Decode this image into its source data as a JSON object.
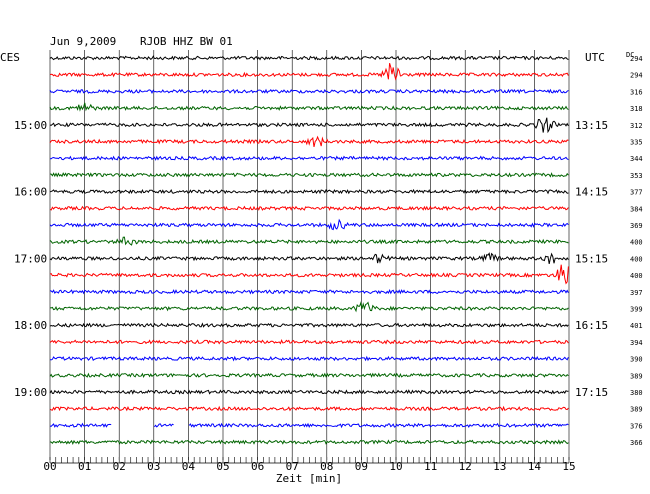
{
  "header": {
    "date": "Jun 9,2009",
    "station": "RJOB HHZ BW 01",
    "left_zone": "CES",
    "right_zone": "UTC",
    "dc_label": "DC"
  },
  "colors": {
    "trace_cycle": [
      "#000000",
      "#ff0000",
      "#0000ff",
      "#006400"
    ],
    "grid": "#000000",
    "background": "#ffffff"
  },
  "chart_data": {
    "type": "line",
    "title": "",
    "xlabel": "Zeit [min]",
    "ylabel": "",
    "xlim": [
      0,
      15
    ],
    "x_ticks": [
      "00",
      "01",
      "02",
      "03",
      "04",
      "05",
      "06",
      "07",
      "08",
      "09",
      "10",
      "11",
      "12",
      "13",
      "14",
      "15"
    ],
    "grid": true,
    "traces": 24,
    "left_time_labels": [
      {
        "row": 4,
        "label": "15:00"
      },
      {
        "row": 8,
        "label": "16:00"
      },
      {
        "row": 12,
        "label": "17:00"
      },
      {
        "row": 16,
        "label": "18:00"
      },
      {
        "row": 20,
        "label": "19:00"
      }
    ],
    "right_time_labels": [
      {
        "row": 4,
        "label": "13:15"
      },
      {
        "row": 8,
        "label": "14:15"
      },
      {
        "row": 12,
        "label": "15:15"
      },
      {
        "row": 16,
        "label": "16:15"
      },
      {
        "row": 20,
        "label": "17:15"
      }
    ],
    "dc_values": [
      "294",
      "294",
      "316",
      "318",
      "312",
      "335",
      "344",
      "353",
      "377",
      "384",
      "369",
      "400",
      "400",
      "400",
      "397",
      "399",
      "401",
      "394",
      "390",
      "389",
      "380",
      "389",
      "376",
      "366"
    ],
    "events": [
      {
        "row": 1,
        "minute": 9.9,
        "amplitude": 14
      },
      {
        "row": 3,
        "minute": 1.0,
        "amplitude": 5
      },
      {
        "row": 4,
        "minute": 14.3,
        "amplitude": 8
      },
      {
        "row": 5,
        "minute": 7.7,
        "amplitude": 5
      },
      {
        "row": 10,
        "minute": 8.3,
        "amplitude": 5
      },
      {
        "row": 11,
        "minute": 2.2,
        "amplitude": 4
      },
      {
        "row": 12,
        "minute": 9.5,
        "amplitude": 4
      },
      {
        "row": 12,
        "minute": 12.7,
        "amplitude": 4
      },
      {
        "row": 12,
        "minute": 14.5,
        "amplitude": 5
      },
      {
        "row": 13,
        "minute": 14.9,
        "amplitude": 14
      },
      {
        "row": 15,
        "minute": 9.1,
        "amplitude": 7
      }
    ],
    "gaps": [
      {
        "row": 22,
        "from": 1.8,
        "to": 3.0
      },
      {
        "row": 22,
        "from": 3.6,
        "to": 4.0
      }
    ]
  }
}
